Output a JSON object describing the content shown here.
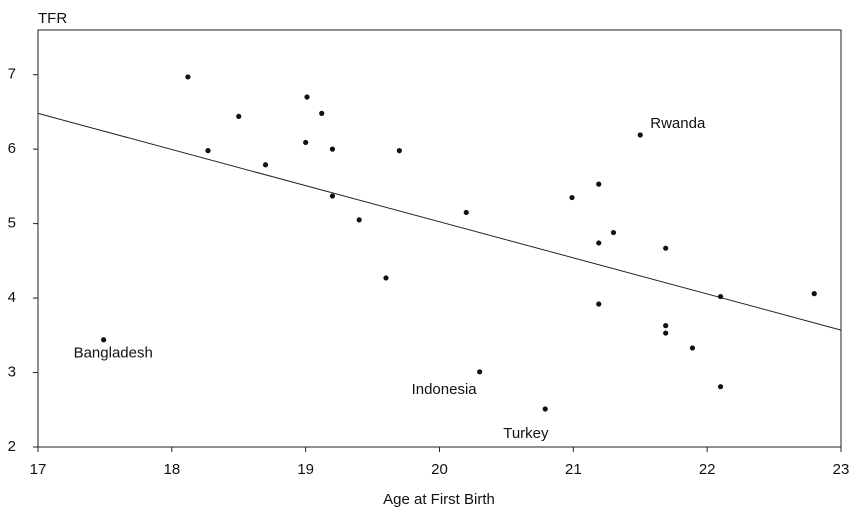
{
  "chart_data": {
    "type": "scatter",
    "xlabel": "Age at First Birth",
    "ylabel": "TFR",
    "xlim": [
      17,
      23
    ],
    "ylim": [
      2,
      7.6
    ],
    "xticks": [
      17,
      18,
      19,
      20,
      21,
      22,
      23
    ],
    "yticks": [
      2,
      3,
      4,
      5,
      6,
      7
    ],
    "series": [
      {
        "color": "#111111",
        "x": [
          18.12,
          18.5,
          18.27,
          19.01,
          19.12,
          19.0,
          19.2,
          19.7,
          18.7,
          19.2,
          19.4,
          20.2,
          19.6,
          17.49,
          20.3,
          20.79,
          21.5,
          20.99,
          21.19,
          21.3,
          21.19,
          21.69,
          21.19,
          22.1,
          22.8,
          21.69,
          21.69,
          21.89,
          22.1
        ],
        "values": [
          6.97,
          6.44,
          5.98,
          6.7,
          6.48,
          6.09,
          6.0,
          5.98,
          5.79,
          5.37,
          5.05,
          5.15,
          4.27,
          3.44,
          3.01,
          2.51,
          6.19,
          5.35,
          5.53,
          4.88,
          4.74,
          4.67,
          3.92,
          4.02,
          4.06,
          3.63,
          3.53,
          3.33,
          2.81
        ],
        "point_labels": [
          null,
          null,
          null,
          null,
          null,
          null,
          null,
          null,
          null,
          null,
          null,
          null,
          null,
          "Bangladesh",
          "Indonesia",
          "Turkey",
          "Rwanda",
          null,
          null,
          null,
          null,
          null,
          null,
          null,
          null,
          null,
          null,
          null,
          null
        ]
      }
    ],
    "trend_line": {
      "color": "#222222",
      "x": [
        17,
        23
      ],
      "values": [
        6.48,
        3.57
      ]
    }
  }
}
